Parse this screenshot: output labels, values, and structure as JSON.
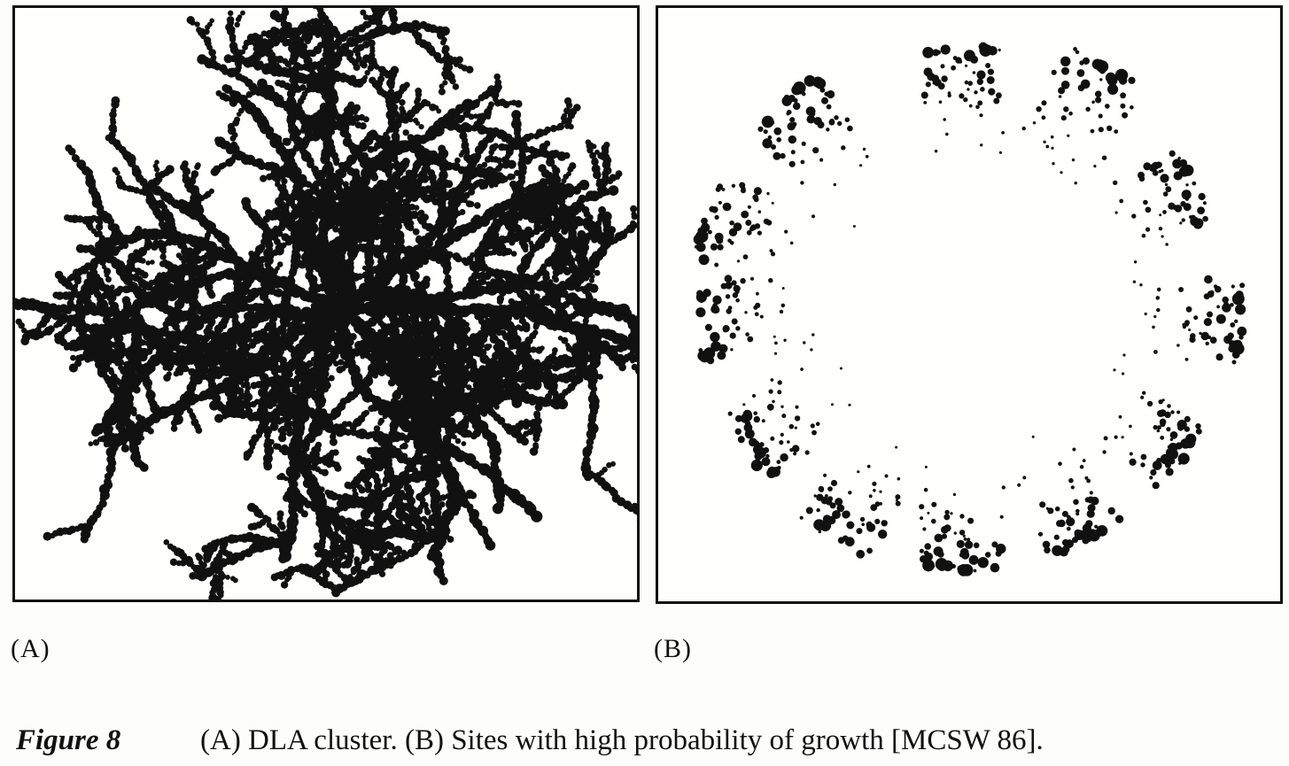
{
  "panels": [
    {
      "label": "(A)",
      "image": "dla-cluster"
    },
    {
      "label": "(B)",
      "image": "high-growth-probability-sites"
    }
  ],
  "caption": {
    "figure_label": "Figure 8",
    "text": "(A) DLA cluster. (B) Sites with high probability of growth [MCSW 86]."
  }
}
